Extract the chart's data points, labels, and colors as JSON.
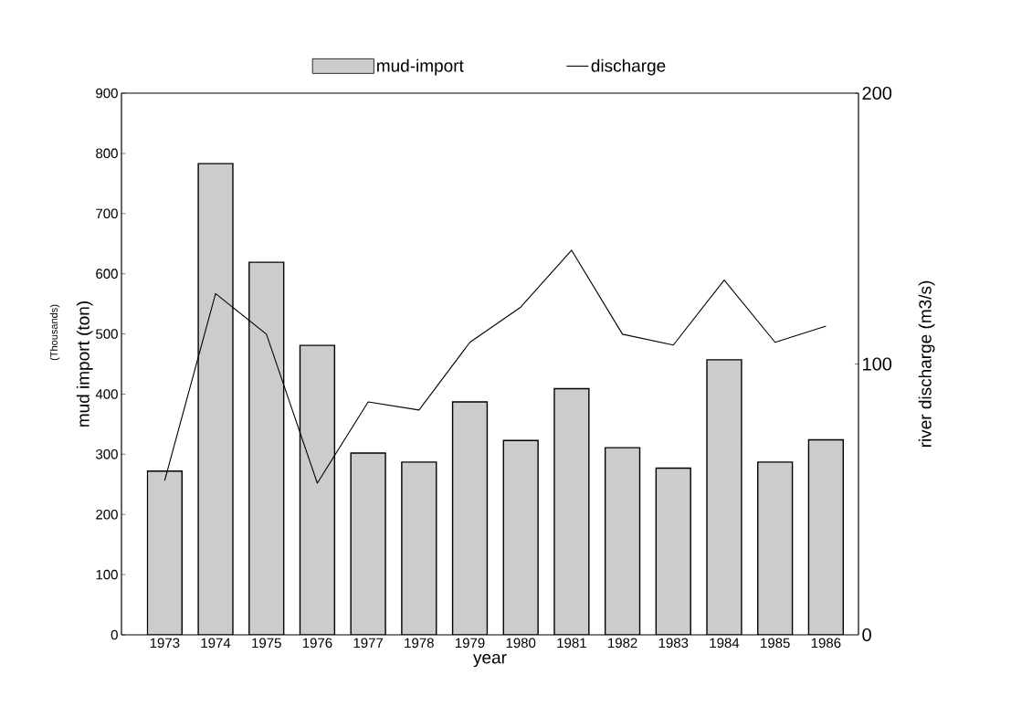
{
  "chart_data": {
    "type": "bar",
    "xlabel": "year",
    "ylabel": "mud import (ton)",
    "y2label": "river discharge (m3/s)",
    "annotations": [
      "(Thousands)"
    ],
    "categories": [
      "1973",
      "1974",
      "1975",
      "1976",
      "1977",
      "1978",
      "1979",
      "1980",
      "1981",
      "1982",
      "1983",
      "1984",
      "1985",
      "1986"
    ],
    "series": [
      {
        "name": "mud-import",
        "color": "#cccccc",
        "values": [
          272,
          783,
          619,
          481,
          302,
          287,
          387,
          323,
          409,
          311,
          277,
          457,
          287,
          324
        ]
      },
      {
        "name": "discharge",
        "type": "line",
        "axis": "y2",
        "color": "#000000",
        "values": [
          57,
          126,
          111,
          56,
          86,
          83,
          108,
          121,
          142,
          111,
          107,
          131,
          108,
          114
        ]
      }
    ],
    "ylim": [
      0,
      900
    ],
    "yticks": [
      0,
      100,
      200,
      300,
      400,
      500,
      600,
      700,
      800,
      900
    ],
    "y2lim": [
      0,
      200
    ],
    "y2ticks": [
      0,
      100,
      200
    ],
    "legend": "top",
    "grid": false,
    "marker": "none",
    "line_style": "solid"
  }
}
